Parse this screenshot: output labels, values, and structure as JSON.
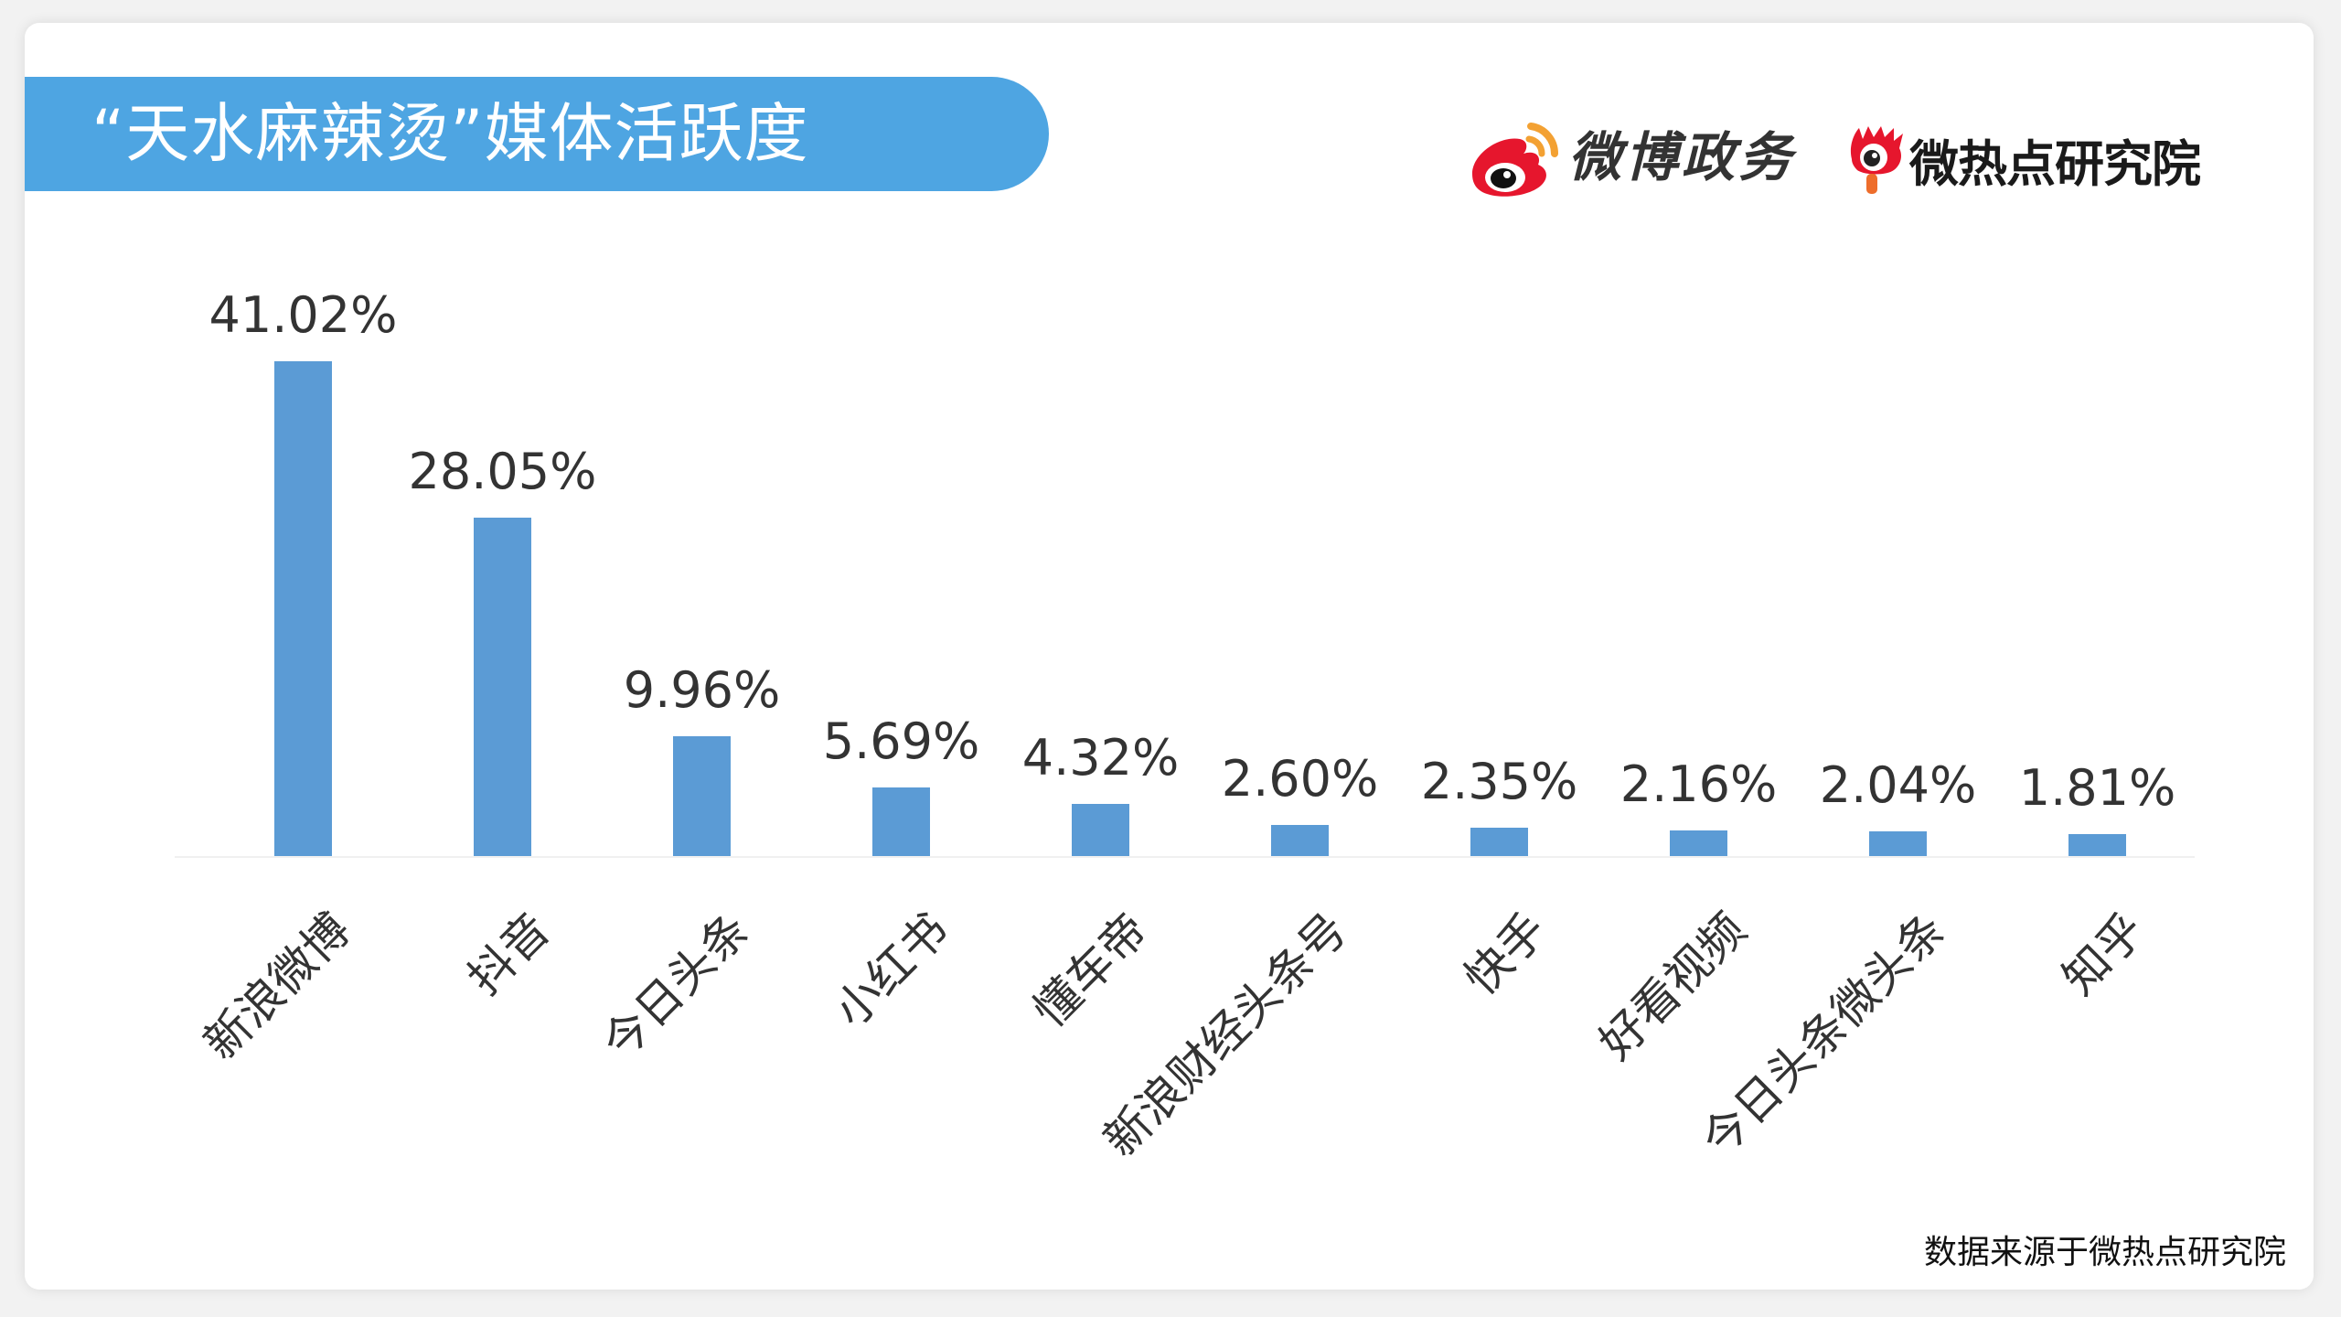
{
  "header": {
    "title": "“天水麻辣烫”媒体活跃度",
    "banner_color": "#4ea5e2"
  },
  "logos": {
    "weibo_gov": {
      "icon": "weibo-eye-icon",
      "text": "微博政务"
    },
    "weiredian": {
      "icon": "weiredian-eye-icon",
      "text": "微热点研究院"
    }
  },
  "footer": {
    "source": "数据来源于微热点研究院"
  },
  "chart_data": {
    "type": "bar",
    "title": "“天水麻辣烫”媒体活跃度",
    "xlabel": "",
    "ylabel": "",
    "categories": [
      "新浪微博",
      "抖音",
      "今日头条",
      "小红书",
      "懂车帝",
      "新浪财经头条号",
      "快手",
      "好看视频",
      "今日头条微头条",
      "知乎"
    ],
    "values": [
      41.02,
      28.05,
      9.96,
      5.69,
      4.32,
      2.6,
      2.35,
      2.16,
      2.04,
      1.81
    ],
    "value_labels": [
      "41.02%",
      "28.05%",
      "9.96%",
      "5.69%",
      "4.32%",
      "2.60%",
      "2.35%",
      "2.16%",
      "2.04%",
      "1.81%"
    ],
    "unit": "%",
    "ylim": [
      0,
      45
    ],
    "grid": false,
    "legend": null,
    "bar_color": "#5b9bd5",
    "x_tick_rotation": -45
  }
}
